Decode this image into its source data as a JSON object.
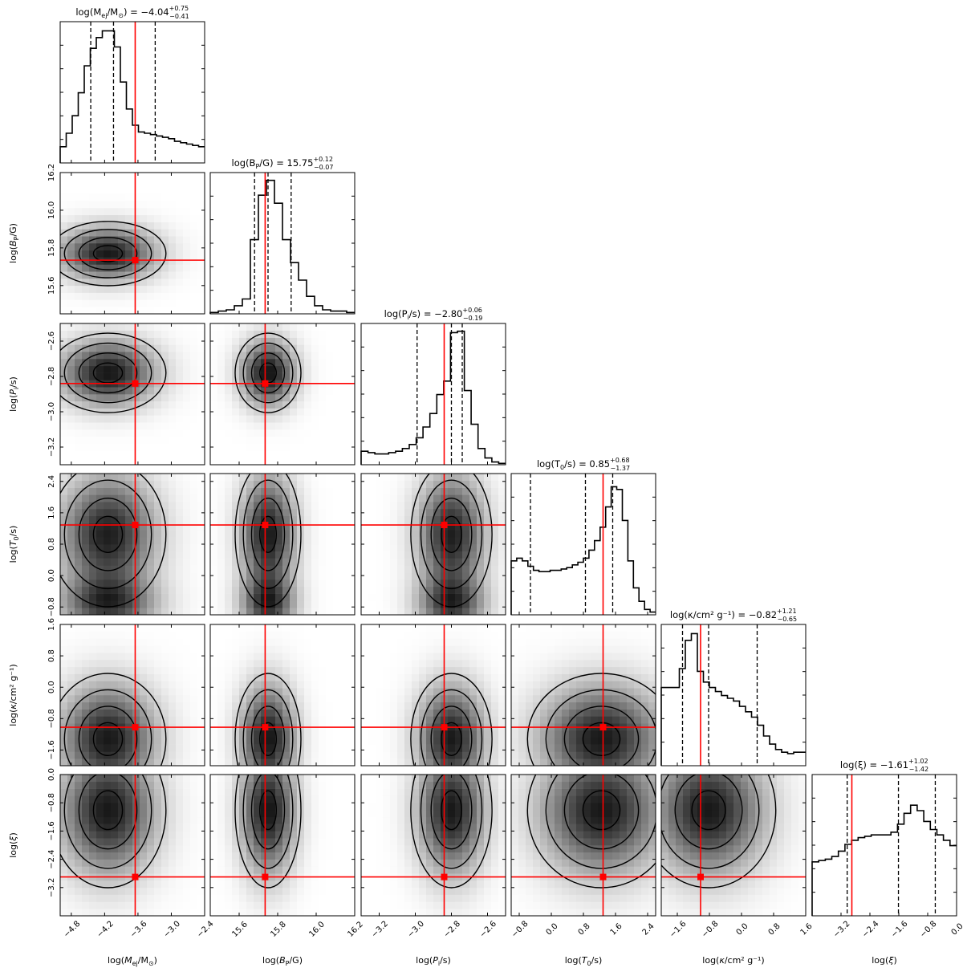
{
  "chart_data": {
    "type": "corner",
    "truth_color": "#ff0000",
    "parameters": [
      {
        "key": "mej",
        "label": "log(M_ej/M_☉)",
        "label_main": "log(",
        "label_sym": "M",
        "label_sub": "ej",
        "label_rest": "/M",
        "label_sub2": "⊙",
        "label_end": ")",
        "title_prefix": "log(M",
        "title_sub": "ej",
        "title_mid": "/M",
        "title_sub2": "⊙",
        "title_end": ") = ",
        "median": "−4.04",
        "plus": "+0.75",
        "minus": "−0.41",
        "range": [
          -5.0,
          -2.4
        ],
        "ticks": [
          -4.8,
          -4.2,
          -3.6,
          -3.0,
          -2.4
        ],
        "tick_labels": [
          "−4.8",
          "−4.2",
          "−3.6",
          "−3.0",
          "−2.4"
        ],
        "quantiles": [
          -4.45,
          -4.04,
          -3.29
        ],
        "truth": -3.65,
        "hist": [
          0.12,
          0.22,
          0.35,
          0.52,
          0.72,
          0.85,
          0.93,
          0.98,
          0.98,
          0.86,
          0.6,
          0.4,
          0.28,
          0.23,
          0.22,
          0.21,
          0.2,
          0.19,
          0.18,
          0.16,
          0.15,
          0.14,
          0.13,
          0.12
        ]
      },
      {
        "key": "bp",
        "label": "log(B_P/G)",
        "title_prefix": "log(B",
        "title_sub": "P",
        "title_mid": "/G",
        "title_sub2": "",
        "title_end": ") = ",
        "median": "15.75",
        "plus": "+0.12",
        "minus": "−0.07",
        "range": [
          15.45,
          16.2
        ],
        "ticks": [
          15.6,
          15.8,
          16.0,
          16.2
        ],
        "tick_labels": [
          "15.6",
          "15.8",
          "16.0",
          "16.2"
        ],
        "quantiles": [
          15.68,
          15.75,
          15.87
        ],
        "truth": 15.735,
        "hist": [
          0.01,
          0.02,
          0.03,
          0.06,
          0.11,
          0.55,
          0.88,
          0.99,
          0.82,
          0.55,
          0.38,
          0.25,
          0.13,
          0.06,
          0.03,
          0.02,
          0.02,
          0.01
        ]
      },
      {
        "key": "pi",
        "label": "log(P_i/s)",
        "title_prefix": "log(P",
        "title_sub": "i",
        "title_mid": "/s",
        "title_sub2": "",
        "title_end": ") = ",
        "median": "−2.80",
        "plus": "+0.06",
        "minus": "−0.19",
        "range": [
          -3.3,
          -2.5
        ],
        "ticks": [
          -3.2,
          -3.0,
          -2.8,
          -2.6
        ],
        "tick_labels": [
          "−3.2",
          "−3.0",
          "−2.8",
          "−2.6"
        ],
        "quantiles": [
          -2.99,
          -2.8,
          -2.74
        ],
        "truth": -2.84,
        "hist": [
          0.1,
          0.09,
          0.08,
          0.08,
          0.09,
          0.1,
          0.12,
          0.15,
          0.2,
          0.28,
          0.38,
          0.52,
          0.62,
          0.98,
          0.99,
          0.55,
          0.3,
          0.12,
          0.05,
          0.02,
          0.01
        ]
      },
      {
        "key": "t0",
        "label": "log(T_0/s)",
        "title_prefix": "log(T",
        "title_sub": "0",
        "title_mid": "/s",
        "title_sub2": "",
        "title_end": ") = ",
        "median": "0.85",
        "plus": "+0.68",
        "minus": "−1.37",
        "range": [
          -1.0,
          2.6
        ],
        "ticks": [
          -0.8,
          0.0,
          0.8,
          1.6,
          2.4
        ],
        "tick_labels": [
          "−0.8",
          "0.0",
          "0.8",
          "1.6",
          "2.4"
        ],
        "quantiles": [
          -0.52,
          0.85,
          1.53
        ],
        "truth": 1.29,
        "hist": [
          0.4,
          0.42,
          0.4,
          0.36,
          0.33,
          0.32,
          0.32,
          0.33,
          0.33,
          0.34,
          0.35,
          0.37,
          0.39,
          0.42,
          0.48,
          0.55,
          0.65,
          0.8,
          0.95,
          0.93,
          0.7,
          0.4,
          0.2,
          0.1,
          0.04,
          0.02
        ]
      },
      {
        "key": "kappa",
        "label": "log(κ/cm² g⁻¹)",
        "title_prefix": "log(κ/cm",
        "title_sub": "",
        "title_mid": "² g⁻¹",
        "title_sub2": "",
        "title_end": ") = ",
        "median": "−0.82",
        "plus": "+1.21",
        "minus": "−0.65",
        "range": [
          -2.0,
          1.6
        ],
        "ticks": [
          -1.6,
          -0.8,
          0.0,
          0.8,
          1.6
        ],
        "tick_labels": [
          "−1.6",
          "−0.8",
          "0.0",
          "0.8",
          "1.6"
        ],
        "quantiles": [
          -1.47,
          -0.82,
          0.39
        ],
        "truth": -1.02,
        "hist": [
          0.58,
          0.58,
          0.58,
          0.72,
          0.93,
          0.98,
          0.7,
          0.62,
          0.58,
          0.55,
          0.52,
          0.5,
          0.48,
          0.44,
          0.4,
          0.36,
          0.3,
          0.22,
          0.16,
          0.12,
          0.1,
          0.09,
          0.1,
          0.1
        ]
      },
      {
        "key": "xi",
        "label": "log(ξ)",
        "title_prefix": "log(ξ",
        "title_sub": "",
        "title_mid": "",
        "title_sub2": "",
        "title_end": ") = ",
        "median": "−1.61",
        "plus": "+1.02",
        "minus": "−1.42",
        "range": [
          -4.0,
          0.0
        ],
        "ticks": [
          -3.2,
          -2.4,
          -1.6,
          -0.8,
          0.0
        ],
        "tick_labels": [
          "−3.2",
          "−2.4",
          "−1.6",
          "−0.8",
          "0.0"
        ],
        "quantiles": [
          -3.03,
          -1.61,
          -0.59
        ],
        "truth": -2.9,
        "hist": [
          0.4,
          0.41,
          0.42,
          0.44,
          0.48,
          0.53,
          0.56,
          0.58,
          0.59,
          0.6,
          0.6,
          0.6,
          0.62,
          0.68,
          0.76,
          0.82,
          0.78,
          0.7,
          0.64,
          0.6,
          0.56,
          0.52
        ]
      }
    ],
    "axis_labels": [
      {
        "param": "mej",
        "prefix": "log(",
        "var": "M",
        "sub": "ej",
        "mid": "/M",
        "sub2": "⊙",
        "end": ")"
      },
      {
        "param": "bp",
        "prefix": "log(",
        "var": "B",
        "sub": "P",
        "mid": "/G",
        "sub2": "",
        "end": ")"
      },
      {
        "param": "pi",
        "prefix": "log(",
        "var": "P",
        "sub": "i",
        "mid": "/s",
        "sub2": "",
        "end": ")"
      },
      {
        "param": "t0",
        "prefix": "log(",
        "var": "T",
        "sub": "0",
        "mid": "/s",
        "sub2": "",
        "end": ")"
      },
      {
        "param": "kappa",
        "prefix": "log(",
        "var": "κ",
        "sub": "",
        "mid": "/cm² g⁻¹",
        "sub2": "",
        "end": ")"
      },
      {
        "param": "xi",
        "prefix": "log(",
        "var": "ξ",
        "sub": "",
        "mid": "",
        "sub2": "",
        "end": ")"
      }
    ],
    "modes": [
      [],
      [
        {
          "mx": -4.15,
          "my": 15.74,
          "sx": 0.38,
          "sy": 0.11,
          "w": 1.0
        }
      ],
      [
        {
          "mx": -4.1,
          "my": -2.78,
          "sx": 0.42,
          "sy": 0.12,
          "w": 1.0
        },
        {
          "mx": 15.75,
          "my": -2.79,
          "sx": 0.09,
          "sy": 0.11,
          "w": 1.0
        }
      ],
      [
        {
          "mx": -4.4,
          "my": -0.7,
          "sx": 0.3,
          "sy": 0.55,
          "w": 0.9
        },
        {
          "mx": -3.95,
          "my": 1.15,
          "sx": 0.35,
          "sy": 0.35,
          "w": 0.85
        }
      ],
      [
        {
          "mx": -4.15,
          "my": -1.3,
          "sx": 0.35,
          "sy": 0.5,
          "w": 1.0
        }
      ],
      [
        {
          "mx": -4.2,
          "my": -0.9,
          "sx": 0.33,
          "sy": 0.7,
          "w": 1.0
        }
      ]
    ]
  }
}
